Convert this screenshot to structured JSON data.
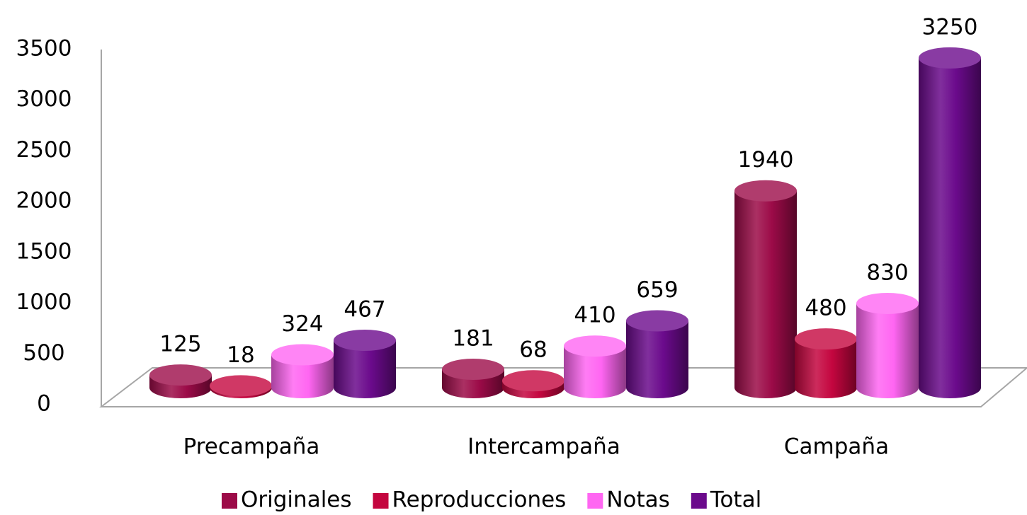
{
  "chart_data": {
    "type": "bar3d",
    "categories": [
      "Precampaña",
      "Intercampaña",
      "Campaña"
    ],
    "series": [
      {
        "name": "Originales",
        "color": "#9c0b48",
        "values": [
          125,
          181,
          1940
        ]
      },
      {
        "name": "Reproducciones",
        "color": "#c4063f",
        "values": [
          18,
          68,
          480
        ]
      },
      {
        "name": "Notas",
        "color": "#ff66f2",
        "values": [
          324,
          410,
          830
        ]
      },
      {
        "name": "Total",
        "color": "#6b0a8c",
        "values": [
          467,
          659,
          3250
        ]
      }
    ],
    "ylim": [
      0,
      3500
    ],
    "yticks": [
      0,
      500,
      1000,
      1500,
      2000,
      2500,
      3000,
      3500
    ],
    "legend": "bottom",
    "grid": false
  }
}
